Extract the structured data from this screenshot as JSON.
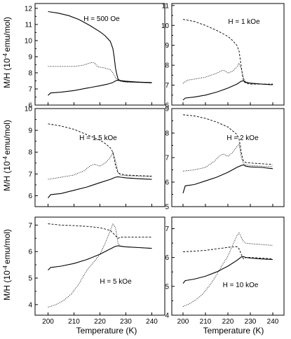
{
  "chart_data": [
    {
      "type": "line",
      "annotation": "H = 500 Oe",
      "xlim": [
        195,
        245
      ],
      "ylim": [
        6,
        12.3
      ],
      "yticks": [
        6,
        7,
        8,
        9,
        10,
        11,
        12
      ],
      "xticks": [],
      "series": [
        {
          "style": "solid",
          "x": [
            200,
            204,
            208,
            212,
            216,
            220,
            222,
            224,
            225,
            225.5,
            226,
            226.5,
            227,
            228,
            230,
            235,
            240
          ],
          "y": [
            11.8,
            11.7,
            11.55,
            11.3,
            10.95,
            10.55,
            10.3,
            9.95,
            9.5,
            9.0,
            8.3,
            7.9,
            7.6,
            7.5,
            7.45,
            7.42,
            7.4
          ]
        },
        {
          "style": "dotted",
          "x": [
            200,
            205,
            210,
            213,
            215,
            217,
            218,
            219,
            220,
            222,
            224,
            225,
            226,
            227,
            230,
            235,
            240
          ],
          "y": [
            8.4,
            8.4,
            8.4,
            8.45,
            8.55,
            8.65,
            8.6,
            8.4,
            8.35,
            8.3,
            8.2,
            8.0,
            7.7,
            7.5,
            7.42,
            7.4,
            7.38
          ]
        },
        {
          "style": "solid",
          "x": [
            200,
            201,
            205,
            210,
            215,
            220,
            223,
            225,
            226,
            227,
            228,
            230,
            235,
            240
          ],
          "y": [
            6.6,
            6.75,
            6.8,
            6.9,
            7.05,
            7.2,
            7.3,
            7.4,
            7.5,
            7.55,
            7.52,
            7.48,
            7.42,
            7.38
          ]
        }
      ]
    },
    {
      "type": "line",
      "annotation": "H = 1 kOe",
      "xlim": [
        195,
        245
      ],
      "ylim": [
        6,
        11.1
      ],
      "yticks": [
        6,
        7,
        8,
        9,
        10,
        11
      ],
      "xticks": [],
      "series": [
        {
          "style": "dashed",
          "x": [
            200,
            205,
            210,
            215,
            220,
            222,
            224,
            225,
            225.5,
            226,
            226.5,
            227,
            228,
            230,
            235,
            240
          ],
          "y": [
            10.3,
            10.2,
            10.0,
            9.75,
            9.45,
            9.25,
            9.0,
            8.7,
            8.3,
            7.9,
            7.5,
            7.2,
            7.1,
            7.05,
            7.05,
            7.05
          ]
        },
        {
          "style": "dotted",
          "x": [
            200,
            202,
            205,
            210,
            215,
            217,
            218,
            219,
            220,
            222,
            224,
            225,
            226,
            227,
            228,
            230,
            235,
            240
          ],
          "y": [
            7.1,
            7.25,
            7.3,
            7.4,
            7.6,
            7.72,
            7.75,
            7.7,
            7.6,
            7.7,
            7.9,
            8.1,
            7.8,
            7.35,
            7.1,
            7.05,
            7.05,
            7.02
          ]
        },
        {
          "style": "solid",
          "x": [
            200,
            201,
            205,
            210,
            215,
            220,
            224,
            226,
            227,
            228,
            230,
            235,
            240
          ],
          "y": [
            6.25,
            6.35,
            6.4,
            6.5,
            6.65,
            6.85,
            7.05,
            7.2,
            7.22,
            7.15,
            7.1,
            7.05,
            7.02
          ]
        }
      ]
    },
    {
      "type": "line",
      "annotation": "H = 1.5 kOe",
      "xlim": [
        195,
        245
      ],
      "ylim": [
        5.5,
        10
      ],
      "yticks": [
        6,
        7,
        8,
        9,
        10
      ],
      "xticks": [],
      "series": [
        {
          "style": "dashed",
          "x": [
            200,
            205,
            210,
            215,
            220,
            222,
            224,
            225,
            225.5,
            226,
            226.5,
            227,
            228,
            230,
            235,
            240
          ],
          "y": [
            9.3,
            9.2,
            9.05,
            8.8,
            8.55,
            8.4,
            8.2,
            8.0,
            7.7,
            7.4,
            7.2,
            7.05,
            7.0,
            6.95,
            6.92,
            6.9
          ]
        },
        {
          "style": "dotted",
          "x": [
            200,
            205,
            210,
            214,
            216,
            218,
            219,
            220,
            222,
            224,
            225,
            226,
            227,
            228,
            230,
            235,
            240
          ],
          "y": [
            6.75,
            6.85,
            6.95,
            7.15,
            7.35,
            7.45,
            7.4,
            7.35,
            7.5,
            7.75,
            8.0,
            7.6,
            7.05,
            6.95,
            6.92,
            6.9,
            6.88
          ]
        },
        {
          "style": "solid",
          "x": [
            200,
            201,
            205,
            210,
            215,
            220,
            224,
            226,
            227,
            228,
            230,
            235,
            240
          ],
          "y": [
            5.9,
            6.05,
            6.1,
            6.25,
            6.4,
            6.6,
            6.75,
            6.85,
            6.87,
            6.85,
            6.82,
            6.78,
            6.75
          ]
        }
      ]
    },
    {
      "type": "line",
      "annotation": "H = 2 kOe",
      "xlim": [
        195,
        245
      ],
      "ylim": [
        5,
        9
      ],
      "yticks": [
        5,
        6,
        7,
        8,
        9
      ],
      "xticks": [],
      "series": [
        {
          "style": "dashed",
          "x": [
            200,
            205,
            210,
            215,
            220,
            222,
            224,
            225,
            225.5,
            226,
            226.5,
            227,
            228,
            230,
            235,
            240
          ],
          "y": [
            8.75,
            8.7,
            8.6,
            8.45,
            8.25,
            8.1,
            7.95,
            7.75,
            7.5,
            7.2,
            7.0,
            6.85,
            6.8,
            6.78,
            6.75,
            6.72
          ]
        },
        {
          "style": "dotted",
          "x": [
            200,
            205,
            210,
            214,
            216,
            218,
            219,
            220,
            222,
            224,
            225,
            226,
            227,
            228,
            230,
            235,
            240
          ],
          "y": [
            6.45,
            6.5,
            6.6,
            6.85,
            7.05,
            7.15,
            7.1,
            7.05,
            7.2,
            7.45,
            7.55,
            7.0,
            6.75,
            6.7,
            6.68,
            6.65,
            6.63
          ]
        },
        {
          "style": "solid",
          "x": [
            200,
            201,
            205,
            210,
            215,
            220,
            224,
            226,
            227,
            228,
            230,
            235,
            240
          ],
          "y": [
            5.55,
            5.85,
            5.9,
            6.05,
            6.2,
            6.4,
            6.6,
            6.68,
            6.7,
            6.65,
            6.62,
            6.6,
            6.55
          ]
        }
      ]
    },
    {
      "type": "line",
      "annotation": "H = 5 kOe",
      "xlim": [
        195,
        245
      ],
      "ylim": [
        3.6,
        7.3
      ],
      "yticks": [
        4,
        5,
        6,
        7
      ],
      "xticks": [
        200,
        210,
        220,
        230,
        240
      ],
      "series": [
        {
          "style": "dashed",
          "x": [
            200,
            205,
            210,
            215,
            220,
            222,
            224,
            225,
            226,
            227,
            228,
            230,
            235,
            240
          ],
          "y": [
            7.05,
            7.0,
            6.98,
            6.95,
            6.9,
            6.85,
            6.8,
            6.7,
            6.6,
            6.5,
            6.55,
            6.55,
            6.55,
            6.55
          ]
        },
        {
          "style": "dotted",
          "x": [
            200,
            203,
            206,
            209,
            212,
            215,
            218,
            220,
            222,
            224,
            225,
            226,
            227,
            228,
            230,
            235,
            240
          ],
          "y": [
            3.9,
            4.0,
            4.15,
            4.4,
            4.8,
            5.3,
            5.65,
            5.9,
            6.3,
            6.8,
            7.05,
            6.9,
            6.3,
            6.2,
            6.18,
            6.15,
            6.12
          ]
        },
        {
          "style": "solid",
          "x": [
            200,
            201,
            205,
            210,
            215,
            220,
            224,
            226,
            227,
            228,
            230,
            235,
            240
          ],
          "y": [
            5.3,
            5.4,
            5.45,
            5.55,
            5.7,
            5.9,
            6.1,
            6.2,
            6.22,
            6.2,
            6.18,
            6.15,
            6.12
          ]
        }
      ]
    },
    {
      "type": "line",
      "annotation": "H = 10 kOe",
      "xlim": [
        195,
        245
      ],
      "ylim": [
        4,
        7.4
      ],
      "yticks": [
        4,
        5,
        6,
        7
      ],
      "xticks": [
        200,
        210,
        220,
        230,
        240
      ],
      "series": [
        {
          "style": "dashed",
          "x": [
            200,
            205,
            210,
            215,
            220,
            222,
            224,
            225,
            226,
            227,
            228,
            230,
            235,
            240
          ],
          "y": [
            6.2,
            6.22,
            6.25,
            6.3,
            6.35,
            6.37,
            6.38,
            6.3,
            6.1,
            5.95,
            6.0,
            6.0,
            5.98,
            5.95
          ]
        },
        {
          "style": "dotted",
          "x": [
            200,
            203,
            206,
            209,
            212,
            215,
            218,
            220,
            222,
            224,
            225,
            226,
            227,
            228,
            230,
            235,
            240
          ],
          "y": [
            4.3,
            4.4,
            4.55,
            4.75,
            5.05,
            5.4,
            5.8,
            6.05,
            6.4,
            6.75,
            6.85,
            6.7,
            6.55,
            6.5,
            6.48,
            6.45,
            6.42
          ]
        },
        {
          "style": "solid",
          "x": [
            200,
            201,
            205,
            210,
            215,
            220,
            224,
            226,
            227,
            228,
            230,
            235,
            240
          ],
          "y": [
            5.1,
            5.2,
            5.25,
            5.35,
            5.5,
            5.7,
            5.9,
            6.02,
            6.03,
            6.0,
            5.98,
            5.95,
            5.93
          ]
        }
      ]
    }
  ],
  "axes": {
    "ylabel_pre": "M/H (10",
    "ylabel_sup": "-4",
    "ylabel_post": "emu/mol)",
    "xlabel": "Temperature (K)"
  }
}
